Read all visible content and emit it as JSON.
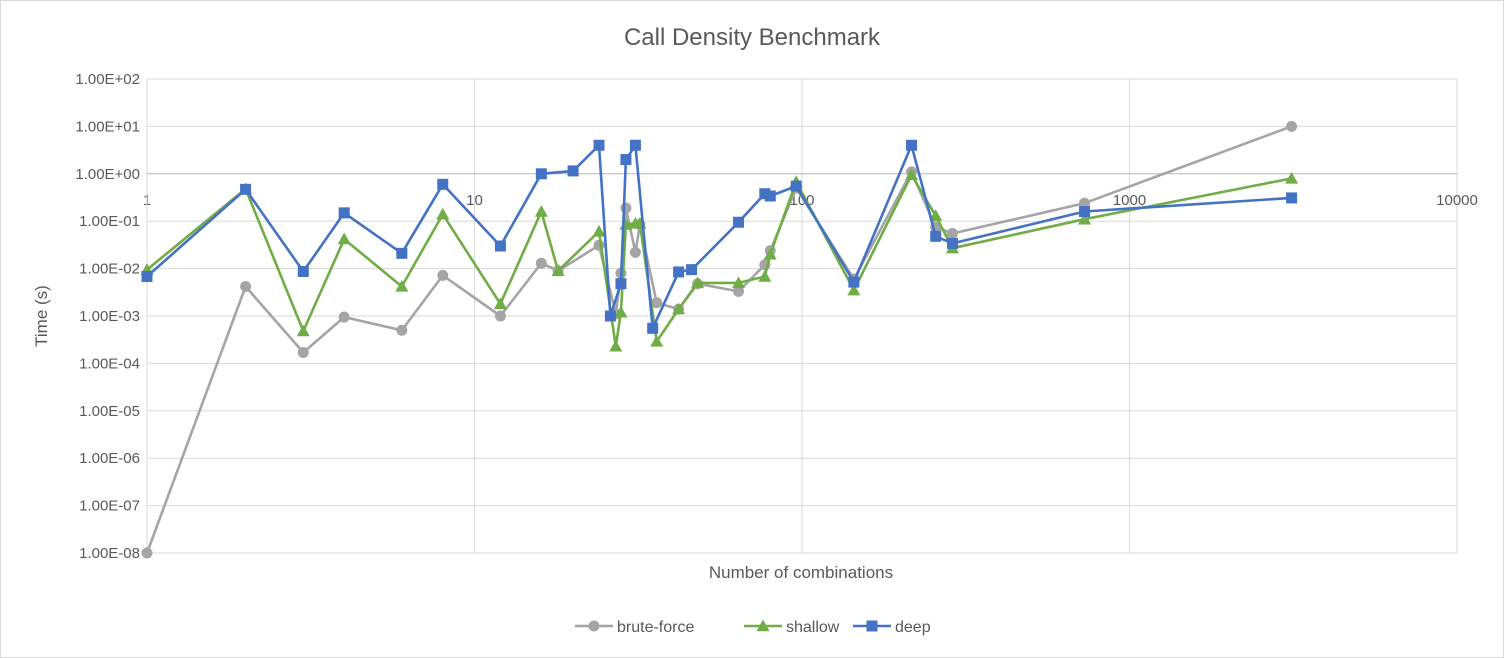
{
  "chart_data": {
    "type": "line",
    "title": "Call Density Benchmark",
    "xlabel": "Number of combinations",
    "ylabel": "Time (s)",
    "x_scale": "log",
    "y_scale": "log",
    "xlim": [
      1,
      10000
    ],
    "ylim": [
      1e-08,
      100
    ],
    "x_ticks": [
      1,
      10,
      100,
      1000,
      10000
    ],
    "x_tick_labels": [
      "1",
      "10",
      "100",
      "1000",
      "10000"
    ],
    "y_ticks": [
      1e-08,
      1e-07,
      1e-06,
      1e-05,
      0.0001,
      0.001,
      0.01,
      0.1,
      1,
      10,
      100
    ],
    "y_tick_labels": [
      "1.00E-08",
      "1.00E-07",
      "1.00E-06",
      "1.00E-05",
      "1.00E-04",
      "1.00E-03",
      "1.00E-02",
      "1.00E-01",
      "1.00E+00",
      "1.00E+01",
      "1.00E+02"
    ],
    "grid": true,
    "legend_position": "bottom",
    "series": [
      {
        "name": "brute-force",
        "color": "#a5a5a5",
        "marker": "circle",
        "points": [
          [
            1,
            1e-08
          ],
          [
            2,
            0.0042
          ],
          [
            3,
            0.00017
          ],
          [
            4,
            0.00095
          ],
          [
            6,
            0.0005
          ],
          [
            8,
            0.0072
          ],
          [
            12,
            0.001
          ],
          [
            16,
            0.013
          ],
          [
            18,
            0.009
          ],
          [
            24,
            0.031
          ],
          [
            27,
            0.0011
          ],
          [
            28,
            0.008
          ],
          [
            29,
            0.19
          ],
          [
            31,
            0.022
          ],
          [
            32,
            0.085
          ],
          [
            36,
            0.0019
          ],
          [
            42,
            0.0014
          ],
          [
            48,
            0.0048
          ],
          [
            64,
            0.0033
          ],
          [
            77,
            0.012
          ],
          [
            80,
            0.024
          ],
          [
            96,
            0.5
          ],
          [
            144,
            0.006
          ],
          [
            216,
            1.1
          ],
          [
            256,
            0.075
          ],
          [
            288,
            0.055
          ],
          [
            729,
            0.24
          ],
          [
            3125,
            10
          ]
        ]
      },
      {
        "name": "shallow",
        "color": "#70ad47",
        "marker": "triangle",
        "points": [
          [
            1,
            0.0095
          ],
          [
            2,
            0.48
          ],
          [
            3,
            0.00048
          ],
          [
            4,
            0.042
          ],
          [
            6,
            0.0042
          ],
          [
            8,
            0.14
          ],
          [
            12,
            0.0018
          ],
          [
            16,
            0.16
          ],
          [
            18,
            0.009
          ],
          [
            24,
            0.061
          ],
          [
            27,
            0.00023
          ],
          [
            28,
            0.0012
          ],
          [
            29,
            0.085
          ],
          [
            31,
            0.09
          ],
          [
            32,
            0.09
          ],
          [
            36,
            0.00029
          ],
          [
            42,
            0.0014
          ],
          [
            48,
            0.005
          ],
          [
            64,
            0.005
          ],
          [
            77,
            0.0068
          ],
          [
            80,
            0.02
          ],
          [
            96,
            0.68
          ],
          [
            144,
            0.0035
          ],
          [
            216,
            0.95
          ],
          [
            256,
            0.13
          ],
          [
            288,
            0.027
          ],
          [
            729,
            0.11
          ],
          [
            3125,
            0.8
          ]
        ]
      },
      {
        "name": "deep",
        "color": "#4472c4",
        "marker": "square",
        "points": [
          [
            1,
            0.0068
          ],
          [
            2,
            0.47
          ],
          [
            3,
            0.0087
          ],
          [
            4,
            0.15
          ],
          [
            6,
            0.021
          ],
          [
            8,
            0.6
          ],
          [
            12,
            0.03
          ],
          [
            16,
            1.0
          ],
          [
            20,
            1.15
          ],
          [
            24,
            4.0
          ],
          [
            26,
            0.001
          ],
          [
            28,
            0.0048
          ],
          [
            29,
            2.0
          ],
          [
            31,
            4.0
          ],
          [
            35,
            0.00055
          ],
          [
            42,
            0.0085
          ],
          [
            46,
            0.0095
          ],
          [
            64,
            0.095
          ],
          [
            77,
            0.38
          ],
          [
            80,
            0.34
          ],
          [
            96,
            0.55
          ],
          [
            144,
            0.0052
          ],
          [
            216,
            4.0
          ],
          [
            256,
            0.048
          ],
          [
            288,
            0.034
          ],
          [
            729,
            0.16
          ],
          [
            3125,
            0.31
          ]
        ]
      }
    ]
  }
}
